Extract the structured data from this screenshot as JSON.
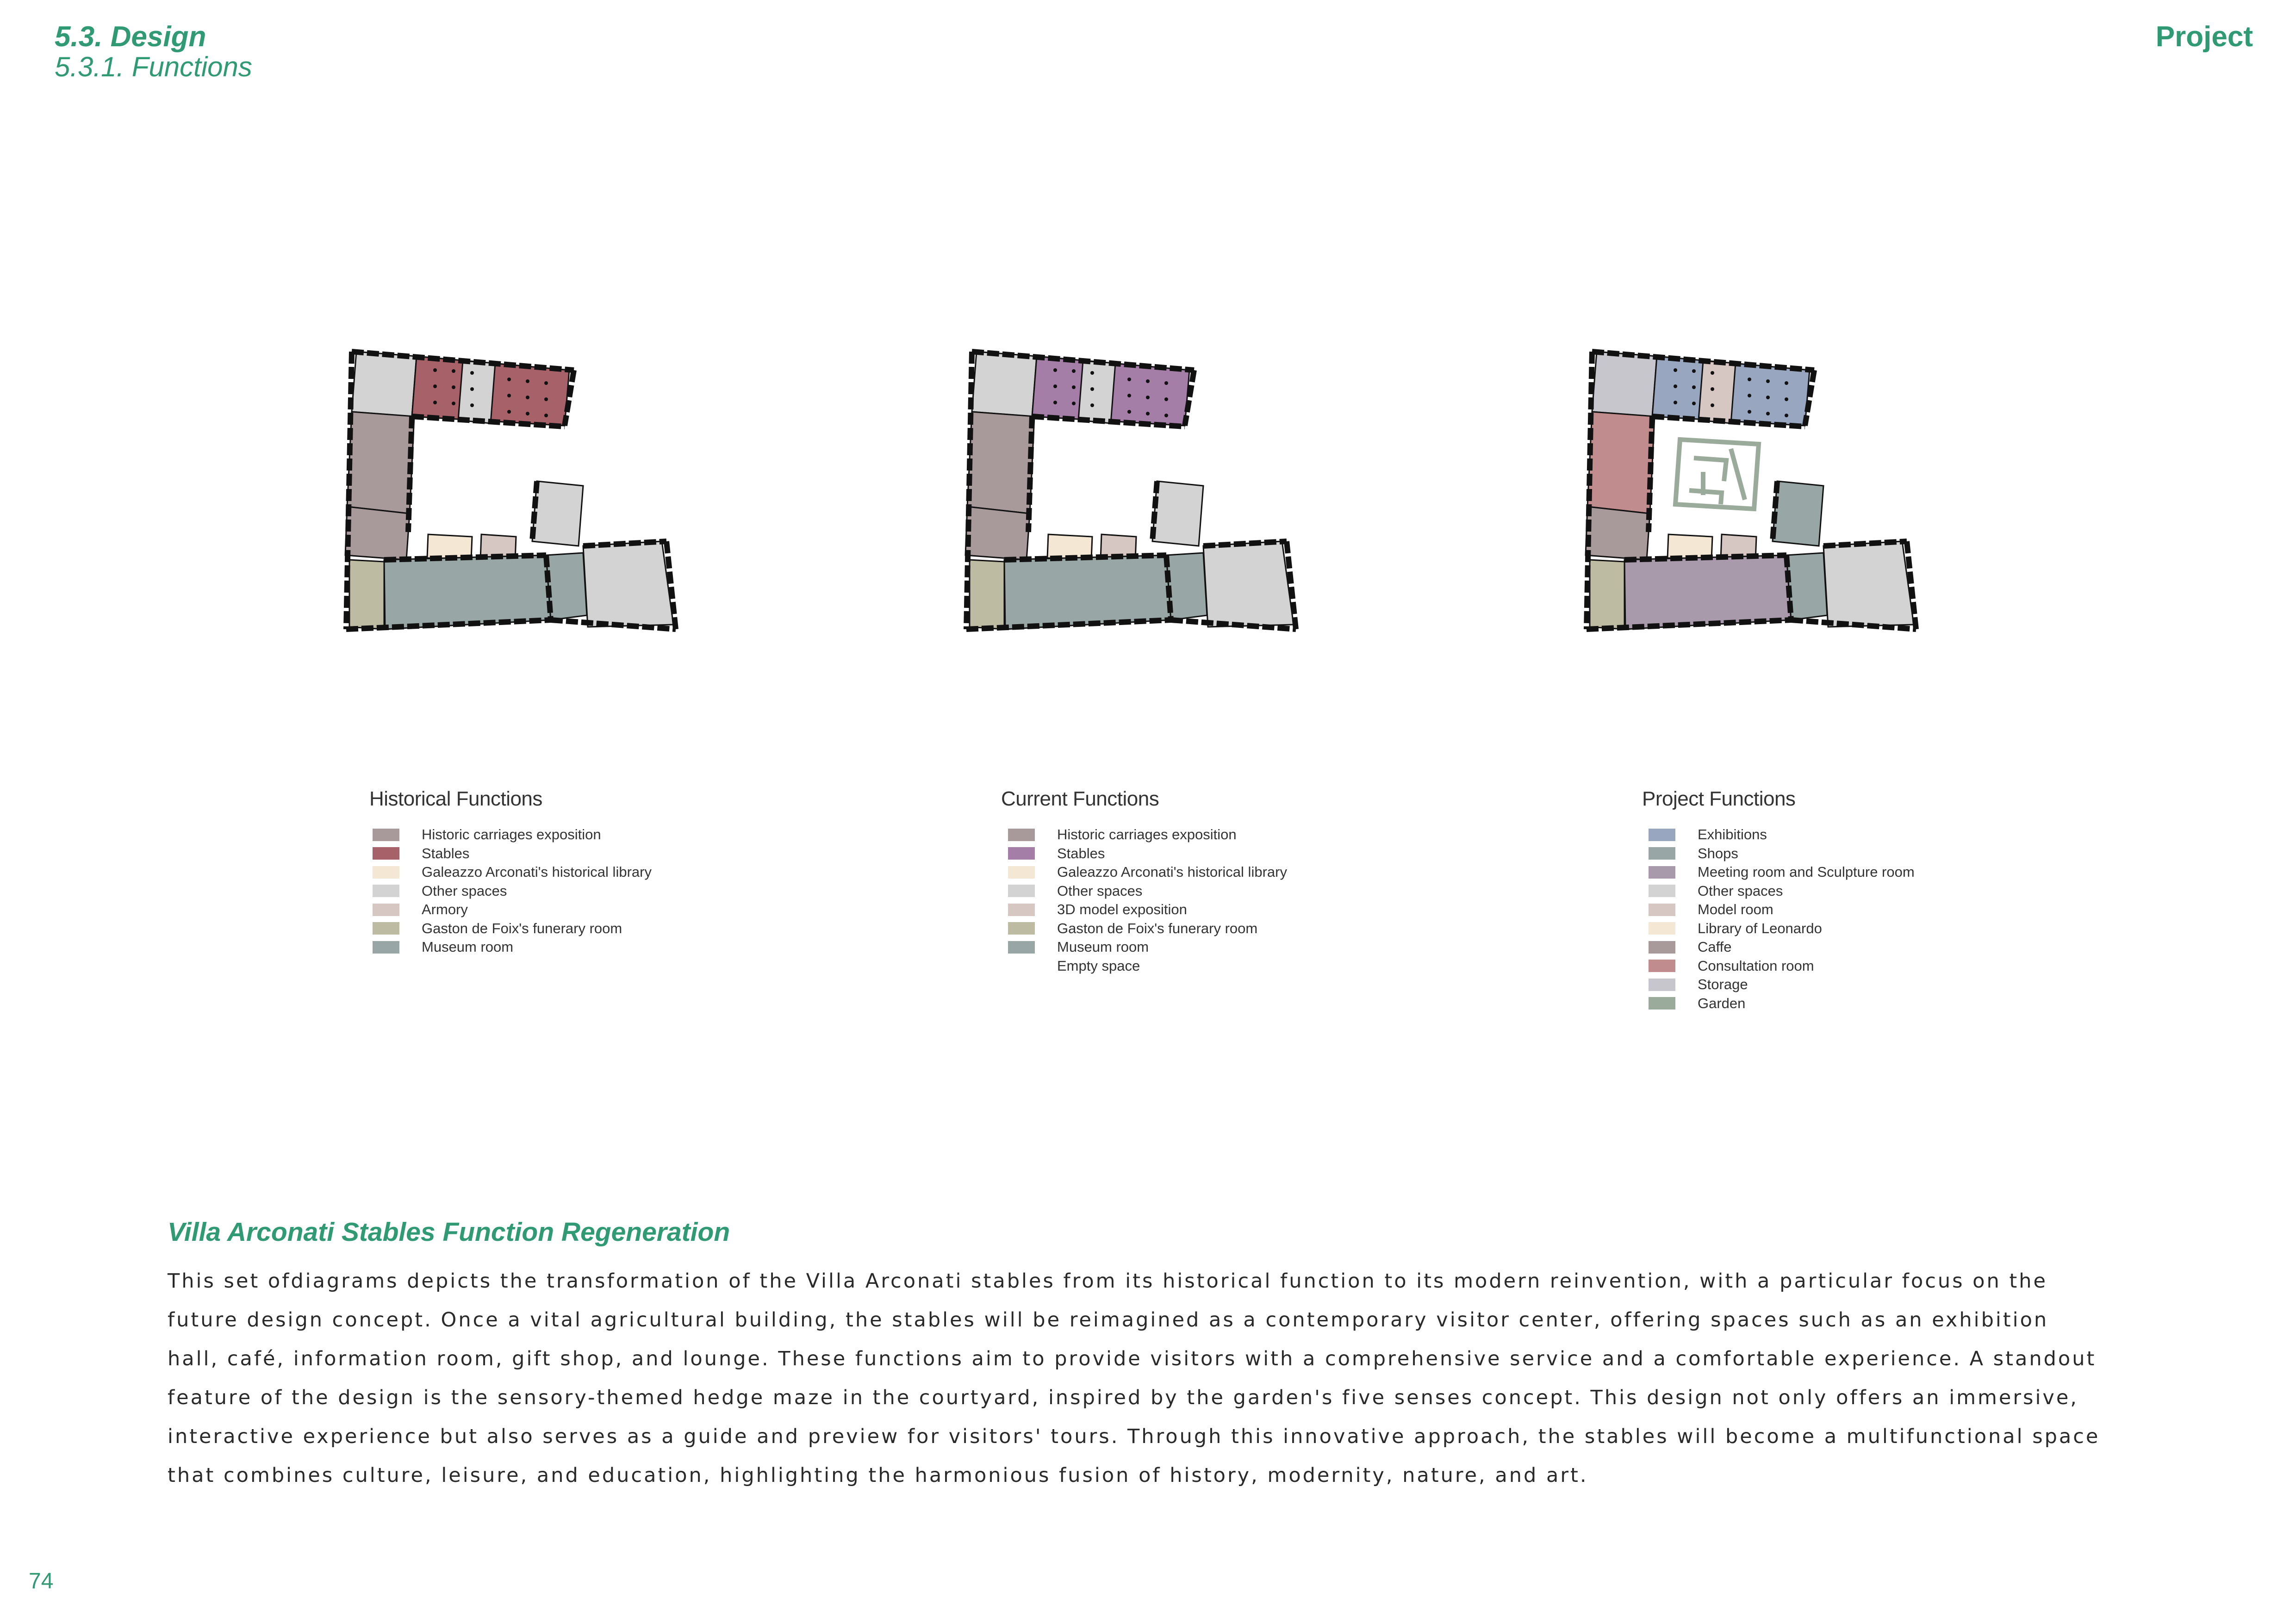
{
  "header": {
    "section": "5.3. Design",
    "subsection": "5.3.1. Functions",
    "chapter": "Project"
  },
  "colors": {
    "accent": "#2f9a73",
    "wall": "#111111",
    "historic_carriages": "#a89a9b",
    "stables_historical": "#a66169",
    "stables_current": "#a57ea8",
    "library": "#f4e7d3",
    "other_spaces": "#d3d3d3",
    "armory": "#d6c7c2",
    "funerary_room": "#bdbca2",
    "museum_room": "#98a6a6",
    "exhibitions": "#98a6bf",
    "shops": "#98a6a6",
    "meeting_room": "#a89aab",
    "consultation_room": "#c08c8d",
    "storage": "#c6c6cc",
    "garden": "#9bab9b"
  },
  "plans": [
    {
      "id": "historical",
      "title": "Historical Functions",
      "fills": {
        "north": "#a66169",
        "bridge": "#d3d3d3",
        "west": "#a89a9b",
        "westlow": "#a89a9b",
        "sw": "#bdbca2",
        "south": "#98a6a6",
        "tower": "#98a6a6",
        "lib": "#f4e7d3",
        "arm": "#d6c7c2",
        "nwc": "#d3d3d3",
        "ne": "#d3d3d3",
        "se": "#d3d3d3"
      },
      "maze": false,
      "legend": [
        {
          "label": "Historic carriages exposition",
          "color": "#a89a9b"
        },
        {
          "label": "Stables",
          "color": "#a66169"
        },
        {
          "label": "Galeazzo Arconati's historical library",
          "color": "#f4e7d3"
        },
        {
          "label": "Other spaces",
          "color": "#d3d3d3"
        },
        {
          "label": "Armory",
          "color": "#d6c7c2"
        },
        {
          "label": "Gaston de Foix's funerary room",
          "color": "#bdbca2"
        },
        {
          "label": "Museum room",
          "color": "#98a6a6"
        }
      ]
    },
    {
      "id": "current",
      "title": "Current Functions",
      "fills": {
        "north": "#a57ea8",
        "bridge": "#d3d3d3",
        "west": "#a89a9b",
        "westlow": "#a89a9b",
        "sw": "#bdbca2",
        "south": "#98a6a6",
        "tower": "#98a6a6",
        "lib": "#f4e7d3",
        "arm": "#d6c7c2",
        "nwc": "#d3d3d3",
        "ne": "#d3d3d3",
        "se": "#d3d3d3"
      },
      "maze": false,
      "legend": [
        {
          "label": "Historic carriages exposition",
          "color": "#a89a9b"
        },
        {
          "label": "Stables",
          "color": "#a57ea8"
        },
        {
          "label": "Galeazzo Arconati's historical library",
          "color": "#f4e7d3"
        },
        {
          "label": "Other spaces",
          "color": "#d3d3d3"
        },
        {
          "label": "3D model exposition",
          "color": "#d6c7c2"
        },
        {
          "label": "Gaston de Foix's funerary room",
          "color": "#bdbca2"
        },
        {
          "label": "Museum room",
          "color": "#98a6a6"
        },
        {
          "label": "Empty space",
          "color": "#ffffff"
        }
      ]
    },
    {
      "id": "project",
      "title": "Project Functions",
      "fills": {
        "north": "#98a6bf",
        "bridge": "#d6c7c2",
        "west": "#c08c8d",
        "westlow": "#a89a9b",
        "sw": "#bdbca2",
        "south": "#a89aab",
        "tower": "#98a6a6",
        "lib": "#f4e7d3",
        "arm": "#d6c7c2",
        "nwc": "#c6c6cc",
        "ne": "#98a6a6",
        "se": "#d3d3d3"
      },
      "maze": true,
      "legend": [
        {
          "label": "Exhibitions",
          "color": "#98a6bf"
        },
        {
          "label": "Shops",
          "color": "#98a6a6"
        },
        {
          "label": "Meeting room and Sculpture room",
          "color": "#a89aab"
        },
        {
          "label": "Other spaces",
          "color": "#d3d3d3"
        },
        {
          "label": "Model room",
          "color": "#d6c7c2"
        },
        {
          "label": "Library of Leonardo",
          "color": "#f4e7d3"
        },
        {
          "label": "Caffe",
          "color": "#a89a9b"
        },
        {
          "label": "Consultation room",
          "color": "#c08c8d"
        },
        {
          "label": "Storage",
          "color": "#c6c6cc"
        },
        {
          "label": "Garden",
          "color": "#9bab9b"
        }
      ]
    }
  ],
  "article": {
    "title": "Villa Arconati Stables Function Regeneration",
    "body": "This set ofdiagrams depicts the transformation of the Villa Arconati stables from its historical function to its modern reinvention, with a particular focus on the future design concept. Once a vital agricultural building, the stables will be reimagined as a contemporary visitor center, offering spaces such as an exhibition hall, café, information room, gift shop, and lounge. These functions aim to provide visitors with a comprehensive service and a comfortable experience. A standout feature of the design is the sensory-themed hedge maze in the courtyard, inspired by the garden's five senses concept. This design not only offers an immersive, interactive experience but also serves as a guide and preview for visitors' tours. Through this innovative approach, the stables will become a multifunctional space that combines culture, leisure, and education, highlighting the harmonious fusion of history, modernity, nature, and art."
  },
  "page_number": "74"
}
